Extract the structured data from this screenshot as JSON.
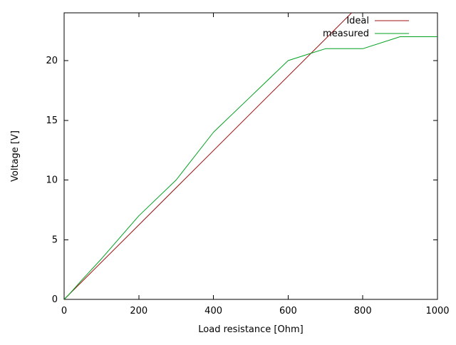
{
  "figure": {
    "background": "#ffffff",
    "border_color": "#000000",
    "text_color": "#000000"
  },
  "chart_data": {
    "type": "line",
    "title": "",
    "xlabel": "Load resistance [Ohm]",
    "ylabel": "Voltage [V]",
    "xlim": [
      0,
      1000
    ],
    "ylim": [
      0,
      24
    ],
    "xticks": [
      0,
      200,
      400,
      600,
      800,
      1000
    ],
    "yticks": [
      0,
      5,
      10,
      15,
      20
    ],
    "grid": false,
    "legend_position": "top-right-inside",
    "series": [
      {
        "name": "Ideal",
        "color": "#a01010",
        "x": [
          0,
          770
        ],
        "y": [
          0,
          24
        ]
      },
      {
        "name": "measured",
        "color": "#00a020",
        "x": [
          0,
          10,
          47,
          100,
          150,
          200,
          300,
          400,
          500,
          600,
          650,
          700,
          800,
          900,
          1000
        ],
        "y": [
          0,
          0.3,
          1.6,
          3.4,
          5.2,
          7.0,
          10.0,
          14.0,
          17.0,
          20.0,
          20.5,
          21.0,
          21.0,
          22.0,
          22.0
        ]
      }
    ]
  }
}
